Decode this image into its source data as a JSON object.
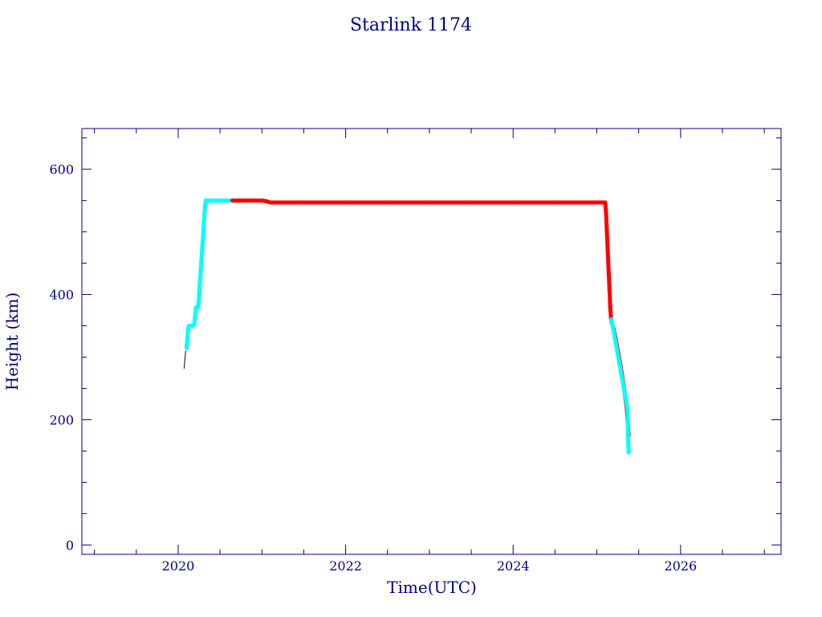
{
  "chart_data": {
    "type": "scatter",
    "title": "Starlink 1174",
    "xlabel": "Time(UTC)",
    "ylabel": "Height (km)",
    "xlim": [
      2018.85,
      2027.2
    ],
    "ylim": [
      -15,
      665
    ],
    "x_ticks": [
      2020,
      2022,
      2024,
      2026
    ],
    "x_tick_labels": [
      "2020",
      "2022",
      "2024",
      "2026"
    ],
    "y_ticks": [
      0,
      200,
      400,
      600
    ],
    "y_tick_labels": [
      "0",
      "200",
      "400",
      "600"
    ],
    "grid": false,
    "legend": "none",
    "colors": {
      "axis": "#00008b",
      "early": "#00ffff",
      "main": "#ff0000",
      "marker": "#000000"
    },
    "series": [
      {
        "color": "#000000",
        "points": [
          [
            2020.07,
            282
          ],
          [
            2020.08,
            295
          ],
          [
            2020.09,
            310
          ]
        ]
      },
      {
        "color": "#00ffff",
        "points": [
          [
            2020.1,
            315
          ],
          [
            2020.11,
            330
          ],
          [
            2020.12,
            345
          ],
          [
            2020.13,
            350
          ],
          [
            2020.15,
            350
          ],
          [
            2020.17,
            350
          ],
          [
            2020.19,
            352
          ],
          [
            2020.2,
            362
          ],
          [
            2020.21,
            378
          ],
          [
            2020.22,
            380
          ],
          [
            2020.24,
            380
          ],
          [
            2020.25,
            398
          ],
          [
            2020.26,
            420
          ],
          [
            2020.27,
            440
          ],
          [
            2020.28,
            460
          ],
          [
            2020.29,
            480
          ],
          [
            2020.3,
            500
          ],
          [
            2020.31,
            520
          ],
          [
            2020.32,
            540
          ],
          [
            2020.33,
            550
          ],
          [
            2020.4,
            550
          ],
          [
            2020.5,
            550
          ],
          [
            2020.6,
            550
          ],
          [
            2020.65,
            550
          ]
        ]
      },
      {
        "color": "#ff0000",
        "points": [
          [
            2020.65,
            550
          ],
          [
            2020.8,
            550
          ],
          [
            2021.0,
            550
          ],
          [
            2021.05,
            549
          ],
          [
            2021.1,
            547
          ],
          [
            2021.5,
            547
          ],
          [
            2022.0,
            547
          ],
          [
            2022.5,
            547
          ],
          [
            2023.0,
            547
          ],
          [
            2023.5,
            547
          ],
          [
            2024.0,
            547
          ],
          [
            2024.5,
            547
          ],
          [
            2025.0,
            547
          ],
          [
            2025.1,
            547
          ],
          [
            2025.11,
            530
          ],
          [
            2025.12,
            500
          ],
          [
            2025.13,
            470
          ],
          [
            2025.14,
            440
          ],
          [
            2025.15,
            410
          ],
          [
            2025.16,
            380
          ],
          [
            2025.17,
            362
          ],
          [
            2025.18,
            355
          ],
          [
            2025.2,
            345
          ],
          [
            2025.22,
            332
          ],
          [
            2025.24,
            318
          ],
          [
            2025.26,
            303
          ],
          [
            2025.28,
            288
          ],
          [
            2025.3,
            272
          ],
          [
            2025.32,
            255
          ],
          [
            2025.34,
            235
          ],
          [
            2025.36,
            215
          ],
          [
            2025.37,
            195
          ],
          [
            2025.38,
            175
          ]
        ]
      },
      {
        "color": "#00ffff",
        "points": [
          [
            2025.175,
            360
          ],
          [
            2025.37,
            215
          ],
          [
            2025.37,
            195
          ],
          [
            2025.375,
            165
          ],
          [
            2025.38,
            148
          ]
        ]
      }
    ]
  }
}
